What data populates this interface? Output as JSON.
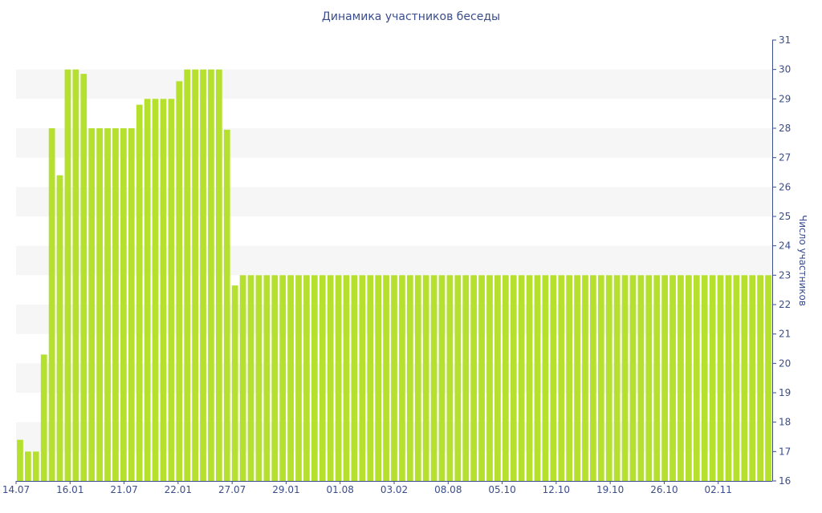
{
  "chart_data": {
    "type": "bar",
    "title": "Динамика участников беседы",
    "xlabel": "",
    "ylabel": "Число участников",
    "ylim": [
      16,
      31
    ],
    "yticks": [
      16,
      17,
      18,
      19,
      20,
      21,
      22,
      23,
      24,
      25,
      26,
      27,
      28,
      29,
      30,
      31
    ],
    "y_axis_side": "right",
    "grid": "alternating horizontal bands",
    "bar_color": "#b5e02e",
    "band_color": "#f6f6f6",
    "text_color": "#3a4d8c",
    "x_tick_labels": [
      "14.07",
      "16.01",
      "21.07",
      "22.01",
      "27.07",
      "29.01",
      "01.08",
      "03.02",
      "08.08",
      "05.10",
      "12.10",
      "19.10",
      "26.10",
      "02.11"
    ],
    "values": [
      17.4,
      17,
      17,
      20.3,
      28,
      26.4,
      30,
      30,
      29.85,
      28,
      28,
      28,
      28,
      28,
      28,
      28.8,
      29,
      29,
      29,
      29,
      29.6,
      30,
      30,
      30,
      30,
      30,
      27.95,
      22.65,
      23,
      23,
      23,
      23,
      23,
      23,
      23,
      23,
      23,
      23,
      23,
      23,
      23,
      23,
      23,
      23,
      23,
      23,
      23,
      23,
      23,
      23,
      23,
      23,
      23,
      23,
      23,
      23,
      23,
      23,
      23,
      23,
      23,
      23,
      23,
      23,
      23,
      23,
      23,
      23,
      23,
      23,
      23,
      23,
      23,
      23,
      23,
      23,
      23,
      23,
      23,
      23,
      23,
      23,
      23,
      23,
      23,
      23,
      23,
      23,
      23,
      23,
      23,
      23,
      23,
      23,
      23
    ]
  }
}
